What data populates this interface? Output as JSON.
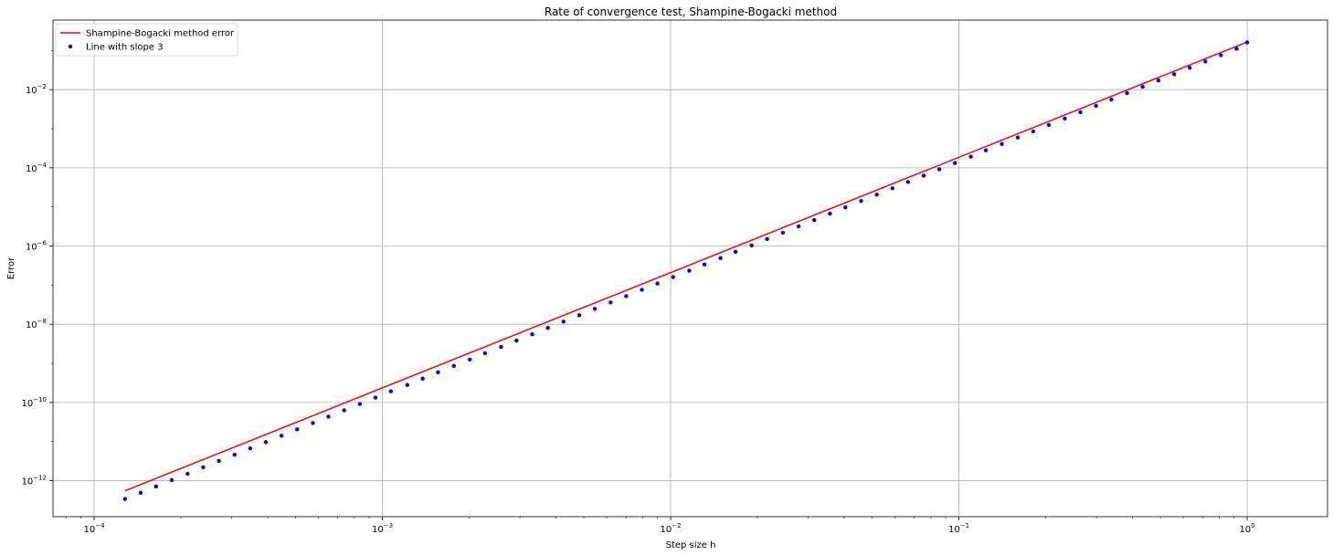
{
  "chart_data": {
    "type": "line",
    "title": "Rate of convergence test, Shampine-Bogacki method",
    "xlabel": "Step size h",
    "ylabel": "Error",
    "xscale": "log",
    "yscale": "log",
    "xlim": [
      7.2e-05,
      1.9
    ],
    "ylim": [
      1.2e-13,
      0.6
    ],
    "grid": true,
    "legend_position": "top-left",
    "x_ticks": [
      {
        "value": 0.0001,
        "mantissa": "10",
        "exp": "−4"
      },
      {
        "value": 0.001,
        "mantissa": "10",
        "exp": "−3"
      },
      {
        "value": 0.01,
        "mantissa": "10",
        "exp": "−2"
      },
      {
        "value": 0.1,
        "mantissa": "10",
        "exp": "−1"
      },
      {
        "value": 1,
        "mantissa": "10",
        "exp": "0"
      }
    ],
    "y_ticks": [
      {
        "value": 1e-12,
        "mantissa": "10",
        "exp": "−12"
      },
      {
        "value": 1e-10,
        "mantissa": "10",
        "exp": "−10"
      },
      {
        "value": 1e-08,
        "mantissa": "10",
        "exp": "−8"
      },
      {
        "value": 1e-06,
        "mantissa": "10",
        "exp": "−6"
      },
      {
        "value": 0.0001,
        "mantissa": "10",
        "exp": "−4"
      },
      {
        "value": 0.01,
        "mantissa": "10",
        "exp": "−2"
      }
    ],
    "series": [
      {
        "name": "Shampine-Bogacki method error",
        "style": "line",
        "color": "#ff0000",
        "x": [
          0.000128,
          1.0
        ],
        "y": [
          5.5e-13,
          0.165
        ]
      },
      {
        "name": "Line with slope 3",
        "style": "points",
        "color": "#0000ff",
        "x": [
          0.000128,
          0.000145,
          0.000164,
          0.000186,
          0.000211,
          0.000239,
          0.000271,
          0.000307,
          0.000348,
          0.000394,
          0.000447,
          0.000506,
          0.000574,
          0.00065,
          0.000737,
          0.000835,
          0.000946,
          0.00107,
          0.00122,
          0.00138,
          0.00156,
          0.00177,
          0.00201,
          0.00227,
          0.00258,
          0.00292,
          0.00331,
          0.00375,
          0.00425,
          0.00482,
          0.00546,
          0.00619,
          0.00701,
          0.00795,
          0.009,
          0.0102,
          0.0116,
          0.0131,
          0.0149,
          0.0168,
          0.0191,
          0.0216,
          0.0245,
          0.0278,
          0.0315,
          0.0357,
          0.0404,
          0.0458,
          0.0519,
          0.0588,
          0.0666,
          0.0755,
          0.0855,
          0.0969,
          0.11,
          0.124,
          0.141,
          0.16,
          0.181,
          0.205,
          0.233,
          0.264,
          0.299,
          0.338,
          0.383,
          0.434,
          0.492,
          0.558,
          0.632,
          0.716,
          0.811,
          0.919,
          1.0
        ],
        "y": [
          3.4e-13,
          4.9e-13,
          7.1e-13,
          1.03e-12,
          1.5e-12,
          2.2e-12,
          3.2e-12,
          4.6e-12,
          6.7e-12,
          9.7e-12,
          1.41e-11,
          2.05e-11,
          2.98e-11,
          4.33e-11,
          6.29e-11,
          9.14e-11,
          1.33e-10,
          1.93e-10,
          2.8e-10,
          4.07e-10,
          5.91e-10,
          8.59e-10,
          1.25e-09,
          1.81e-09,
          2.63e-09,
          3.82e-09,
          5.55e-09,
          8.07e-09,
          1.17e-08,
          1.7e-08,
          2.48e-08,
          3.6e-08,
          5.23e-08,
          7.59e-08,
          1.1e-07,
          1.6e-07,
          2.33e-07,
          3.38e-07,
          4.91e-07,
          7.14e-07,
          1.04e-06,
          1.51e-06,
          2.19e-06,
          3.18e-06,
          4.62e-06,
          6.71e-06,
          9.75e-06,
          1.42e-05,
          2.06e-05,
          2.99e-05,
          4.34e-05,
          6.3e-05,
          9.16e-05,
          0.000133,
          0.000193,
          0.000281,
          0.000408,
          0.000593,
          0.000862,
          0.00125,
          0.00182,
          0.00264,
          0.00384,
          0.00558,
          0.0081,
          0.0118,
          0.0171,
          0.0248,
          0.0361,
          0.0524,
          0.0761,
          0.111,
          0.16
        ]
      }
    ]
  }
}
